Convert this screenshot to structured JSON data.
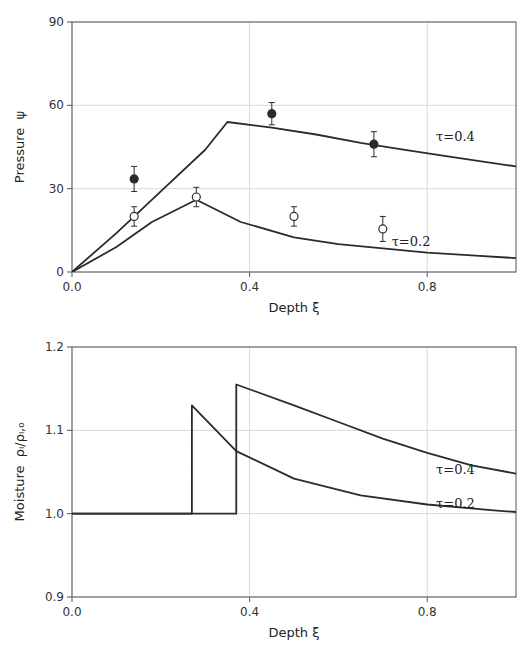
{
  "chart_data": [
    {
      "type": "line",
      "xlabel": "Depth ξ",
      "ylabel": "Pressure  ψ",
      "xlim": [
        0,
        1.0
      ],
      "ylim": [
        0,
        90
      ],
      "xticks": [
        {
          "value": 0,
          "label": "0.0"
        },
        0.4,
        0.8
      ],
      "yticks": [
        0,
        30,
        60,
        90
      ],
      "grid": true,
      "series": [
        {
          "type": "line",
          "x": [
            0.0,
            0.1,
            0.2,
            0.3,
            0.35,
            0.45,
            0.55,
            0.65,
            0.75,
            0.85,
            1.0
          ],
          "values": [
            0.0,
            14.0,
            29.0,
            44.0,
            54.0,
            52.0,
            49.5,
            46.5,
            44.0,
            41.5,
            38.0
          ]
        },
        {
          "type": "line",
          "x": [
            0.0,
            0.1,
            0.18,
            0.28,
            0.38,
            0.5,
            0.6,
            0.7,
            0.8,
            0.9,
            1.0
          ],
          "values": [
            0.0,
            9.0,
            18.0,
            26.0,
            18.0,
            12.5,
            10.0,
            8.5,
            7.0,
            6.0,
            5.0
          ]
        },
        {
          "type": "scatter",
          "marker": "circle",
          "x": [
            0.14,
            0.45,
            0.68
          ],
          "values": [
            33.5,
            57.0,
            46.0
          ],
          "errors": [
            4.5,
            4.0,
            4.5
          ]
        },
        {
          "type": "scatter",
          "marker": "open-circle",
          "x": [
            0.14,
            0.28,
            0.5,
            0.7
          ],
          "values": [
            20.0,
            27.0,
            20.0,
            15.5
          ],
          "errors": [
            3.5,
            3.5,
            3.5,
            4.5
          ]
        }
      ],
      "annotations": [
        {
          "text": "τ=0.4",
          "x": 0.82,
          "y": 49.0
        },
        {
          "text": "τ=0.2",
          "x": 0.72,
          "y": 11.0
        }
      ]
    },
    {
      "type": "line",
      "xlabel": "Depth ξ",
      "ylabel": "Moisture  ρₗ/ρₗ,₀",
      "xlim": [
        0,
        1.0
      ],
      "ylim": [
        0.9,
        1.2
      ],
      "xticks": [
        {
          "value": 0,
          "label": "0.0"
        },
        0.4,
        0.8
      ],
      "yticks": [
        0.9,
        {
          "value": 1.0,
          "label": "1.0"
        },
        1.1,
        1.2
      ],
      "grid": true,
      "series": [
        {
          "type": "line",
          "x": [
            0.0,
            0.37,
            0.37,
            0.5,
            0.6,
            0.7,
            0.8,
            0.9,
            1.0
          ],
          "values": [
            1.0,
            1.0,
            1.155,
            1.13,
            1.11,
            1.09,
            1.073,
            1.058,
            1.048
          ]
        },
        {
          "type": "line",
          "x": [
            0.0,
            0.27,
            0.27,
            0.37,
            0.5,
            0.65,
            0.8,
            0.95,
            1.0
          ],
          "values": [
            1.0,
            1.0,
            1.13,
            1.075,
            1.042,
            1.022,
            1.011,
            1.004,
            1.002
          ]
        }
      ],
      "annotations": [
        {
          "text": "τ=0.4",
          "x": 0.82,
          "y": 1.054
        },
        {
          "text": "τ=0.2",
          "x": 0.82,
          "y": 1.013
        }
      ]
    }
  ]
}
